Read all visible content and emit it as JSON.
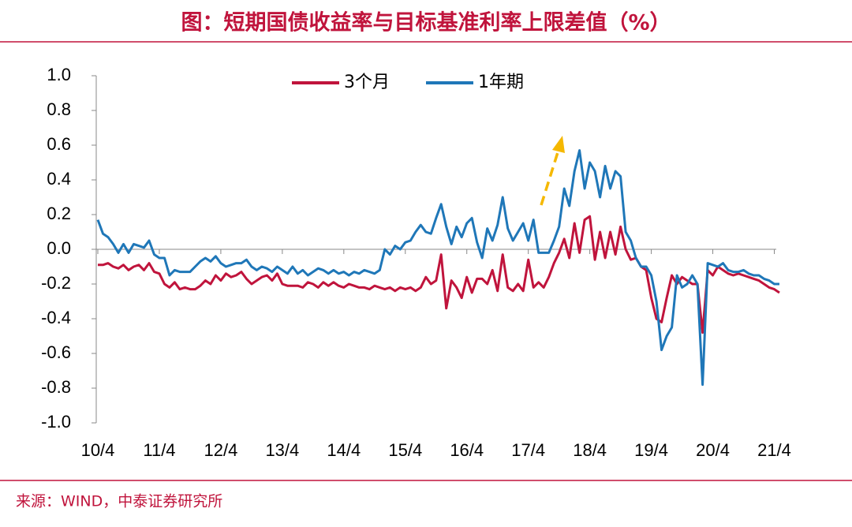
{
  "chart_data": {
    "type": "line",
    "title": "图：短期国债收益率与目标基准利率上限差值（%）",
    "source": "来源：WIND，中泰证券研究所",
    "x": [
      "10/4",
      "10/5",
      "10/6",
      "10/7",
      "10/8",
      "10/9",
      "10/10",
      "10/11",
      "10/12",
      "11/1",
      "11/2",
      "11/3",
      "11/4",
      "11/5",
      "11/6",
      "11/7",
      "11/8",
      "11/9",
      "11/10",
      "11/11",
      "11/12",
      "12/1",
      "12/2",
      "12/3",
      "12/4",
      "12/5",
      "12/6",
      "12/7",
      "12/8",
      "12/9",
      "12/10",
      "12/11",
      "12/12",
      "13/1",
      "13/2",
      "13/3",
      "13/4",
      "13/5",
      "13/6",
      "13/7",
      "13/8",
      "13/9",
      "13/10",
      "13/11",
      "13/12",
      "14/1",
      "14/2",
      "14/3",
      "14/4",
      "14/5",
      "14/6",
      "14/7",
      "14/8",
      "14/9",
      "14/10",
      "14/11",
      "14/12",
      "15/1",
      "15/2",
      "15/3",
      "15/4",
      "15/5",
      "15/6",
      "15/7",
      "15/8",
      "15/9",
      "15/10",
      "15/11",
      "15/12",
      "16/1",
      "16/2",
      "16/3",
      "16/4",
      "16/5",
      "16/6",
      "16/7",
      "16/8",
      "16/9",
      "16/10",
      "16/11",
      "16/12",
      "17/1",
      "17/2",
      "17/3",
      "17/4",
      "17/5",
      "17/6",
      "17/7",
      "17/8",
      "17/9",
      "17/10",
      "17/11",
      "17/12",
      "18/1",
      "18/2",
      "18/3",
      "18/4",
      "18/5",
      "18/6",
      "18/7",
      "18/8",
      "18/9",
      "18/10",
      "18/11",
      "18/12",
      "19/1",
      "19/2",
      "19/3",
      "19/4",
      "19/5",
      "19/6",
      "19/7",
      "19/8",
      "19/9",
      "19/10",
      "19/11",
      "19/12",
      "20/1",
      "20/2",
      "20/3",
      "20/4",
      "20/5",
      "20/6",
      "20/7",
      "20/8",
      "20/9",
      "20/10",
      "20/11",
      "20/12",
      "21/1",
      "21/2",
      "21/3",
      "21/4",
      "21/5"
    ],
    "series": [
      {
        "name": "3个月",
        "color": "#c0143c",
        "values": [
          -0.09,
          -0.09,
          -0.08,
          -0.1,
          -0.11,
          -0.09,
          -0.12,
          -0.1,
          -0.09,
          -0.12,
          -0.08,
          -0.13,
          -0.14,
          -0.2,
          -0.22,
          -0.19,
          -0.23,
          -0.22,
          -0.23,
          -0.23,
          -0.21,
          -0.18,
          -0.2,
          -0.15,
          -0.18,
          -0.14,
          -0.16,
          -0.15,
          -0.13,
          -0.17,
          -0.2,
          -0.18,
          -0.16,
          -0.15,
          -0.18,
          -0.14,
          -0.2,
          -0.21,
          -0.21,
          -0.21,
          -0.22,
          -0.19,
          -0.2,
          -0.22,
          -0.19,
          -0.21,
          -0.19,
          -0.21,
          -0.22,
          -0.2,
          -0.21,
          -0.22,
          -0.22,
          -0.23,
          -0.21,
          -0.22,
          -0.23,
          -0.22,
          -0.24,
          -0.22,
          -0.23,
          -0.22,
          -0.24,
          -0.22,
          -0.16,
          -0.2,
          -0.18,
          -0.03,
          -0.34,
          -0.18,
          -0.22,
          -0.28,
          -0.16,
          -0.25,
          -0.17,
          -0.17,
          -0.2,
          -0.12,
          -0.24,
          -0.03,
          -0.22,
          -0.24,
          -0.2,
          -0.24,
          -0.06,
          -0.22,
          -0.19,
          -0.22,
          -0.16,
          -0.08,
          -0.02,
          0.06,
          -0.05,
          0.15,
          -0.02,
          0.17,
          0.19,
          -0.06,
          0.1,
          -0.05,
          0.1,
          -0.03,
          0.13,
          0.0,
          -0.06,
          -0.05,
          -0.1,
          -0.12,
          -0.28,
          -0.4,
          -0.42,
          -0.28,
          -0.15,
          -0.2,
          -0.16,
          -0.18,
          -0.2,
          -0.2,
          -0.48,
          -0.12,
          -0.15,
          -0.1,
          -0.12,
          -0.14,
          -0.15,
          -0.14,
          -0.15,
          -0.16,
          -0.17,
          -0.18,
          -0.2,
          -0.22,
          -0.23,
          -0.25
        ]
      },
      {
        "name": "1年期",
        "color": "#1f77b8",
        "values": [
          0.17,
          0.09,
          0.07,
          0.03,
          -0.02,
          0.03,
          -0.02,
          0.03,
          0.02,
          0.01,
          0.05,
          -0.03,
          -0.05,
          -0.05,
          -0.15,
          -0.12,
          -0.13,
          -0.13,
          -0.13,
          -0.1,
          -0.07,
          -0.05,
          -0.07,
          -0.04,
          -0.08,
          -0.1,
          -0.09,
          -0.08,
          -0.08,
          -0.06,
          -0.1,
          -0.12,
          -0.1,
          -0.11,
          -0.13,
          -0.1,
          -0.12,
          -0.14,
          -0.1,
          -0.14,
          -0.12,
          -0.15,
          -0.13,
          -0.11,
          -0.12,
          -0.14,
          -0.12,
          -0.14,
          -0.13,
          -0.15,
          -0.13,
          -0.14,
          -0.12,
          -0.13,
          -0.14,
          -0.12,
          0.0,
          -0.03,
          0.02,
          0.0,
          0.04,
          0.05,
          0.1,
          0.14,
          0.1,
          0.09,
          0.18,
          0.26,
          0.13,
          0.03,
          0.13,
          0.07,
          0.15,
          0.18,
          0.04,
          -0.05,
          0.12,
          0.05,
          0.14,
          0.3,
          0.12,
          0.05,
          0.1,
          0.15,
          0.05,
          0.17,
          -0.02,
          -0.02,
          -0.02,
          0.05,
          0.13,
          0.35,
          0.25,
          0.45,
          0.57,
          0.35,
          0.5,
          0.45,
          0.3,
          0.48,
          0.35,
          0.45,
          0.42,
          0.1,
          0.05,
          -0.05,
          -0.1,
          -0.1,
          -0.15,
          -0.3,
          -0.58,
          -0.5,
          -0.45,
          -0.15,
          -0.22,
          -0.2,
          -0.15,
          -0.2,
          -0.78,
          -0.08,
          -0.09,
          -0.1,
          -0.08,
          -0.12,
          -0.13,
          -0.13,
          -0.12,
          -0.14,
          -0.15,
          -0.15,
          -0.17,
          -0.18,
          -0.2,
          -0.2
        ]
      }
    ],
    "ylim": [
      -1.0,
      1.0
    ],
    "yticks": [
      {
        "value": -1.0,
        "label": "-1.0"
      },
      {
        "value": -0.8,
        "label": "-0.8"
      },
      {
        "value": -0.6,
        "label": "-0.6"
      },
      {
        "value": -0.4,
        "label": "-0.4"
      },
      {
        "value": -0.2,
        "label": "-0.2"
      },
      {
        "value": 0.0,
        "label": "0.0"
      },
      {
        "value": 0.2,
        "label": "0.2"
      },
      {
        "value": 0.4,
        "label": "0.4"
      },
      {
        "value": 0.6,
        "label": "0.6"
      },
      {
        "value": 0.8,
        "label": "0.8"
      },
      {
        "value": 1.0,
        "label": "1.0"
      }
    ],
    "xticks": [
      "10/4",
      "11/4",
      "12/4",
      "13/4",
      "14/4",
      "15/4",
      "16/4",
      "17/4",
      "18/4",
      "19/4",
      "20/4",
      "21/4"
    ],
    "legend": "top"
  }
}
